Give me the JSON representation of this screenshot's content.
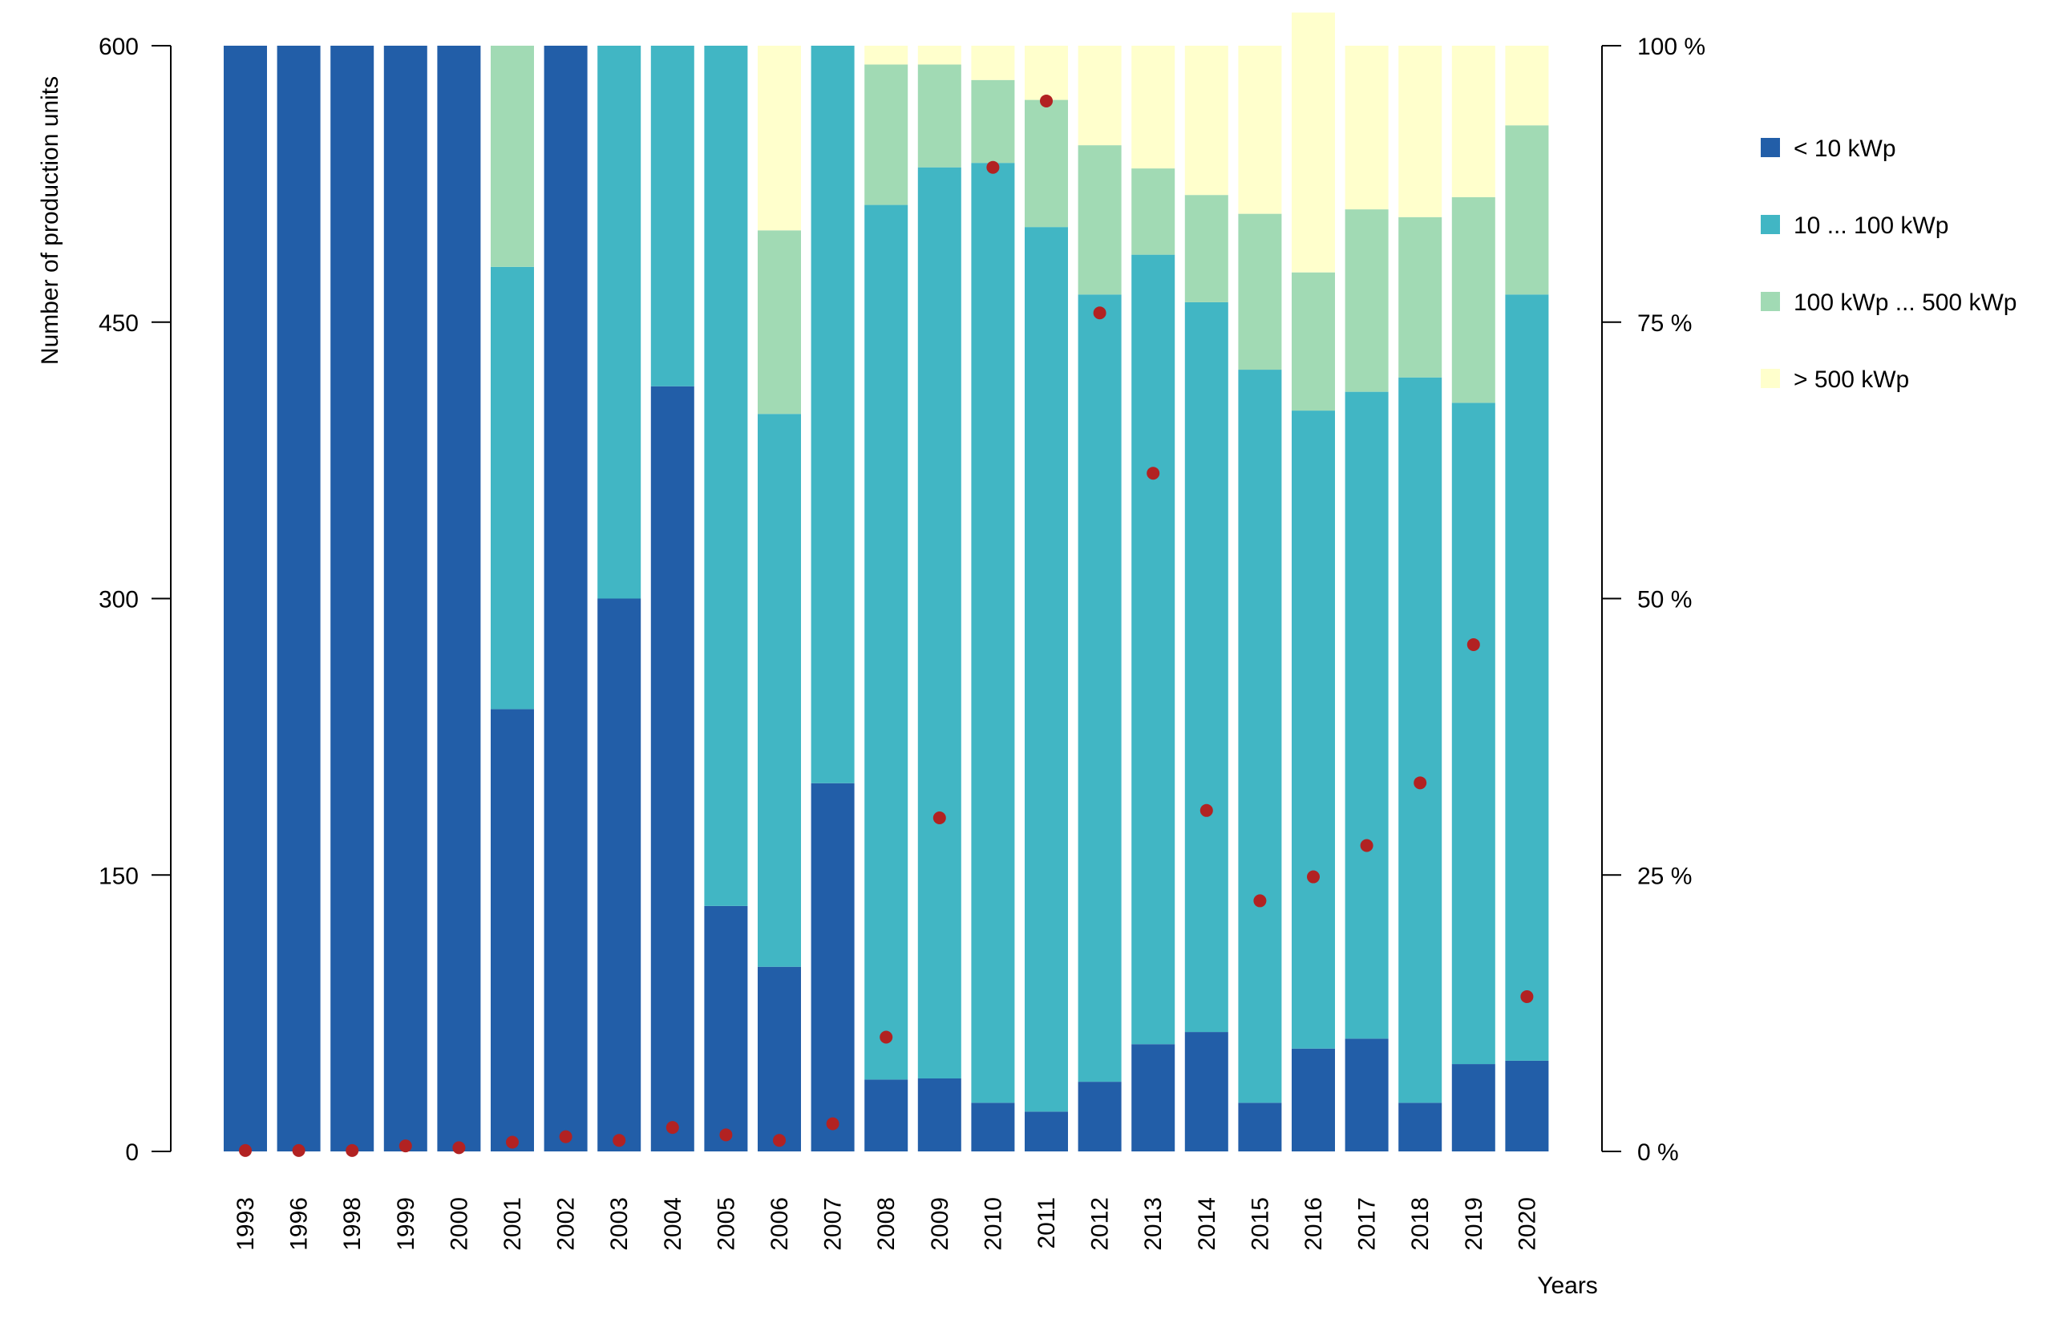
{
  "chart_data": {
    "type": "bar",
    "stacked": true,
    "normalized_percent": true,
    "categories": [
      "1993",
      "1996",
      "1998",
      "1999",
      "2000",
      "2001",
      "2002",
      "2003",
      "2004",
      "2005",
      "2006",
      "2007",
      "2008",
      "2009",
      "2010",
      "2011",
      "2012",
      "2013",
      "2014",
      "2015",
      "2016",
      "2017",
      "2018",
      "2019",
      "2020"
    ],
    "series": [
      {
        "name": "< 10 kWp",
        "color": "#225EA8",
        "values": [
          100,
          100,
          100,
          100,
          100,
          40,
          100,
          50,
          69.2,
          22.2,
          16.7,
          33.3,
          6.5,
          6.6,
          4.4,
          3.6,
          6.3,
          9.7,
          10.8,
          4.4,
          9.3,
          10.2,
          4.4,
          7.9,
          8.2
        ]
      },
      {
        "name": "10 ... 100 kWp",
        "color": "#41B6C4",
        "values": [
          0,
          0,
          0,
          0,
          0,
          40,
          0,
          50,
          30.8,
          77.8,
          50,
          66.7,
          79.1,
          82.4,
          85,
          80,
          71.2,
          71.4,
          66,
          66.3,
          57.7,
          58.5,
          65.6,
          59.8,
          69.3
        ]
      },
      {
        "name": "100 kWp ... 500 kWp",
        "color": "#A1DAB4",
        "values": [
          0,
          0,
          0,
          0,
          0,
          20,
          0,
          0,
          0,
          0,
          16.6,
          0,
          12.7,
          9.3,
          7.5,
          11.5,
          13.5,
          7.8,
          9.7,
          14.1,
          12.5,
          16.5,
          14.5,
          18.6,
          15.3
        ]
      },
      {
        "name": "> 500 kWp",
        "color": "#FFFFCC",
        "values": [
          0,
          0,
          0,
          0,
          0,
          0,
          0,
          0,
          0,
          0,
          16.7,
          0,
          1.7,
          1.7,
          3.1,
          4.9,
          9,
          11.1,
          13.5,
          15.2,
          23.5,
          14.8,
          15.5,
          13.7,
          7.2
        ]
      }
    ],
    "points": {
      "color": "#B22222",
      "axis": "left",
      "values": [
        0.5,
        0.5,
        0.5,
        3,
        2,
        5,
        8,
        6,
        13,
        9,
        6,
        15,
        62,
        181,
        534,
        570,
        455,
        368,
        185,
        136,
        149,
        166,
        200,
        275,
        84
      ]
    },
    "ylabel_left": "Number of production units",
    "ylim_left": [
      0,
      600
    ],
    "yticks_left": [
      "0",
      "150",
      "300",
      "450",
      "600"
    ],
    "ylim_right": [
      0,
      100
    ],
    "yticks_right": [
      "0 %",
      "25 %",
      "50 %",
      "75 %",
      "100 %"
    ],
    "xlabel": "Years",
    "legend_position": "right"
  }
}
